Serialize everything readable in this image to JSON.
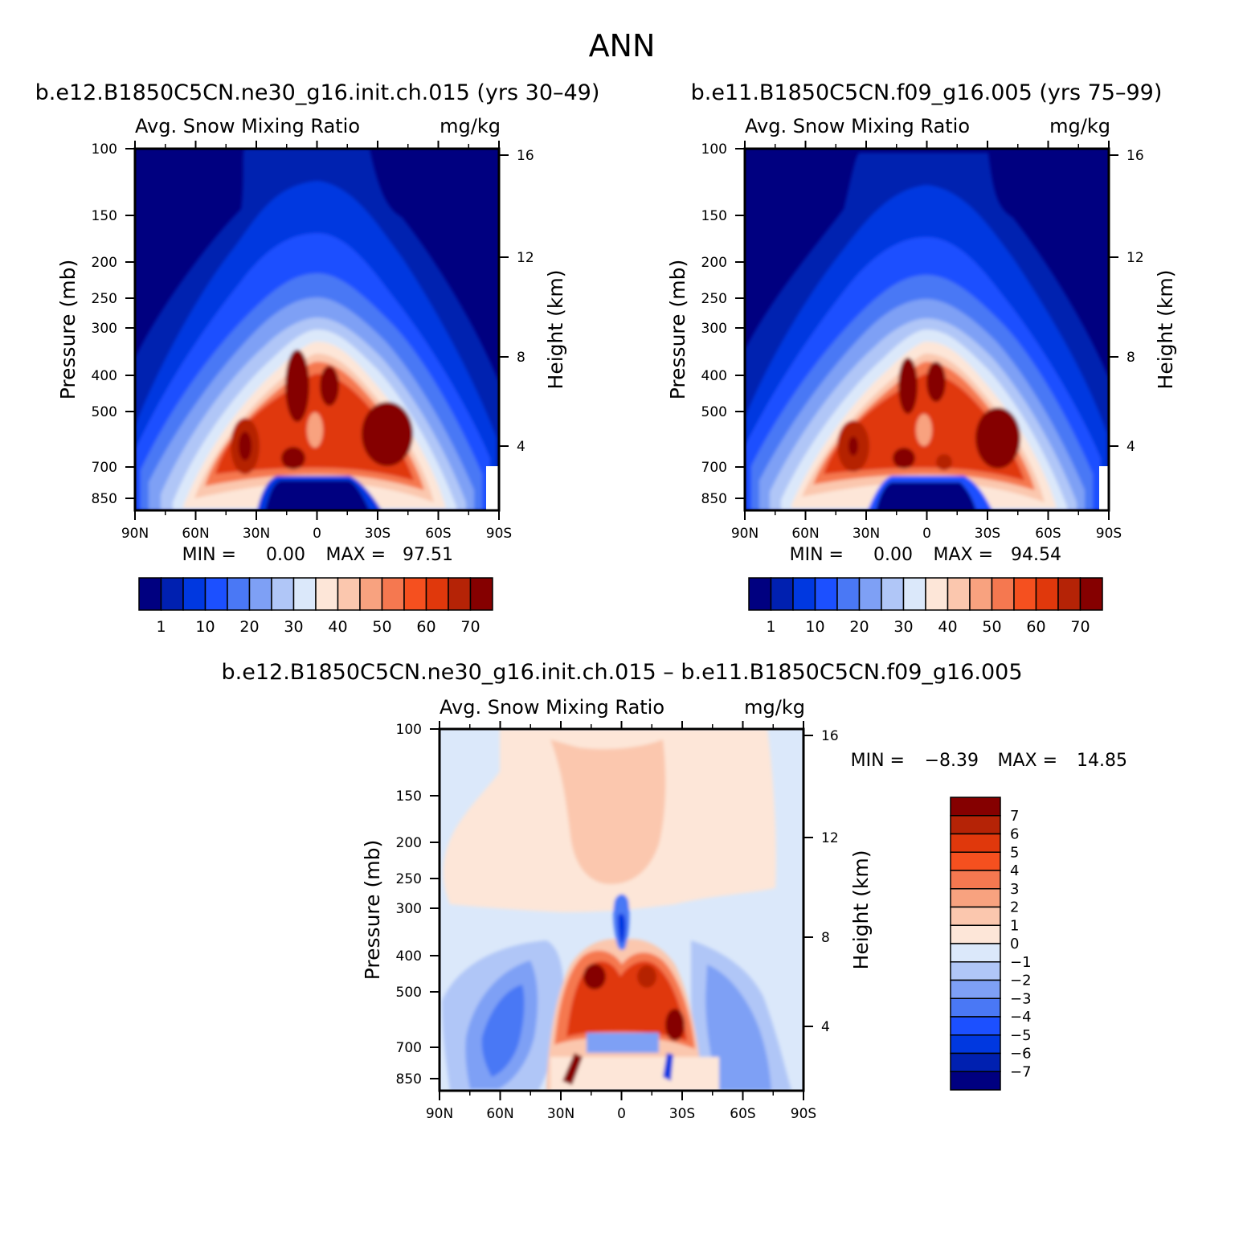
{
  "figure": {
    "title": "ANN"
  },
  "colors": {
    "main_scale": [
      "#000080",
      "#0020b0",
      "#0038e0",
      "#1c50ff",
      "#4a78f5",
      "#7ea0f5",
      "#b0c6f7",
      "#dbe8fa",
      "#fde6d8",
      "#fbc7ae",
      "#f8a27f",
      "#f57850",
      "#f5501f",
      "#e0380c",
      "#b52306",
      "#850000"
    ],
    "diff_scale": [
      "#000080",
      "#0020b0",
      "#0038e0",
      "#1c50ff",
      "#4a78f5",
      "#7ea0f5",
      "#b0c6f7",
      "#dbe8fa",
      "#fde6d8",
      "#fbc7ae",
      "#f8a27f",
      "#f57850",
      "#f5501f",
      "#e0380c",
      "#b52306",
      "#850000"
    ]
  },
  "chart_data": [
    {
      "type": "heatmap",
      "id": "panel-1",
      "case_title": "b.e12.B1850C5CN.ne30_g16.init.ch.015 (yrs 30–49)",
      "variable": "Avg. Snow Mixing Ratio",
      "units": "mg/kg",
      "ylabel": "Pressure (mb)",
      "ylabel_right": "Height (km)",
      "x_ticks": [
        "90N",
        "60N",
        "30N",
        "0",
        "30S",
        "60S",
        "90S"
      ],
      "y_ticks": [
        "100",
        "150",
        "200",
        "250",
        "300",
        "400",
        "500",
        "700",
        "850"
      ],
      "height_ticks": [
        "16",
        "12",
        "8",
        "4"
      ],
      "min_label": "MIN =",
      "min_value": "0.00",
      "max_label": "MAX =",
      "max_value": "97.51",
      "colorbar_labels": [
        "1",
        "10",
        "20",
        "30",
        "40",
        "50",
        "60",
        "70"
      ],
      "ylim": [
        850,
        100
      ]
    },
    {
      "type": "heatmap",
      "id": "panel-2",
      "case_title": "b.e11.B1850C5CN.f09_g16.005 (yrs 75–99)",
      "variable": "Avg. Snow Mixing Ratio",
      "units": "mg/kg",
      "ylabel": "Pressure (mb)",
      "ylabel_right": "Height (km)",
      "x_ticks": [
        "90N",
        "60N",
        "30N",
        "0",
        "30S",
        "60S",
        "90S"
      ],
      "y_ticks": [
        "100",
        "150",
        "200",
        "250",
        "300",
        "400",
        "500",
        "700",
        "850"
      ],
      "height_ticks": [
        "16",
        "12",
        "8",
        "4"
      ],
      "min_label": "MIN =",
      "min_value": "0.00",
      "max_label": "MAX =",
      "max_value": "94.54",
      "colorbar_labels": [
        "1",
        "10",
        "20",
        "30",
        "40",
        "50",
        "60",
        "70"
      ],
      "ylim": [
        850,
        100
      ]
    },
    {
      "type": "heatmap",
      "id": "panel-diff",
      "case_title": "b.e12.B1850C5CN.ne30_g16.init.ch.015 – b.e11.B1850C5CN.f09_g16.005",
      "variable": "Avg. Snow Mixing Ratio",
      "units": "mg/kg",
      "ylabel": "Pressure (mb)",
      "ylabel_right": "Height (km)",
      "x_ticks": [
        "90N",
        "60N",
        "30N",
        "0",
        "30S",
        "60S",
        "90S"
      ],
      "y_ticks": [
        "100",
        "150",
        "200",
        "250",
        "300",
        "400",
        "500",
        "700",
        "850"
      ],
      "height_ticks": [
        "16",
        "12",
        "8",
        "4"
      ],
      "min_label": "MIN =",
      "min_value": "−8.39",
      "max_label": "MAX =",
      "max_value": "14.85",
      "colorbar_labels": [
        "7",
        "6",
        "5",
        "4",
        "3",
        "2",
        "1",
        "0",
        "−1",
        "−2",
        "−3",
        "−4",
        "−5",
        "−6",
        "−7"
      ],
      "ylim": [
        850,
        100
      ]
    }
  ]
}
